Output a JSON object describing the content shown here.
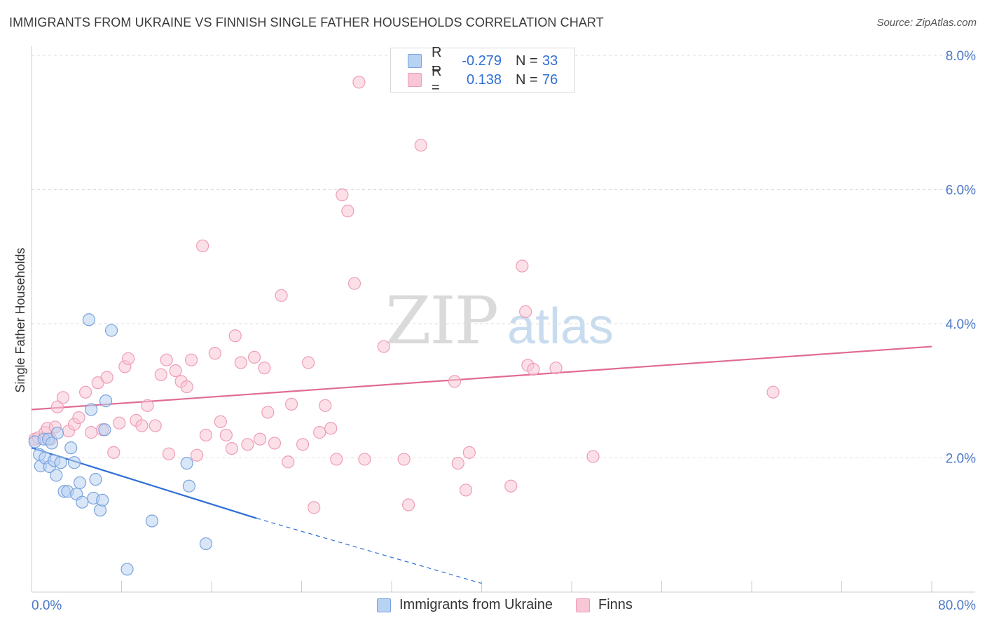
{
  "header": {
    "title": "IMMIGRANTS FROM UKRAINE VS FINNISH SINGLE FATHER HOUSEHOLDS CORRELATION CHART",
    "source": "Source: ZipAtlas.com"
  },
  "watermark": {
    "zip": "ZIP",
    "atlas": "atlas"
  },
  "legend": {
    "rows": [
      {
        "r_label": "R =",
        "r_value": "-0.279",
        "n_label": "N =",
        "n_value": "33",
        "fill": "#b8d2f3",
        "stroke": "#7aa3dd"
      },
      {
        "r_label": "R =",
        "r_value": "0.138",
        "n_label": "N =",
        "n_value": "76",
        "fill": "#f9c6d6",
        "stroke": "#ee9db7"
      }
    ]
  },
  "bottom_legend": {
    "items": [
      {
        "label": "Immigrants from Ukraine",
        "fill": "#b8d2f3",
        "stroke": "#7aa3dd"
      },
      {
        "label": "Finns",
        "fill": "#f9c6d6",
        "stroke": "#ee9db7"
      }
    ]
  },
  "chart_data": {
    "type": "scatter",
    "title": "IMMIGRANTS FROM UKRAINE VS FINNISH SINGLE FATHER HOUSEHOLDS CORRELATION CHART",
    "xlabel": "",
    "ylabel": "Single Father Households",
    "xlim": [
      0,
      80
    ],
    "ylim": [
      0,
      8.2
    ],
    "x_tick_labels": [
      "0.0%",
      "80.0%"
    ],
    "y_ticks": [
      2,
      4,
      6,
      8
    ],
    "y_tick_labels": [
      "2.0%",
      "4.0%",
      "6.0%",
      "8.0%"
    ],
    "grid": true,
    "legend_position": "top-center",
    "colors": {
      "ukraine": "#2f6fd6",
      "finns": "#e06b94"
    },
    "series": [
      {
        "name": "Immigrants from Ukraine",
        "color": "#7aa3dd",
        "fill": "#b8d2f3",
        "points": [
          [
            0.3,
            2.24
          ],
          [
            0.7,
            2.05
          ],
          [
            0.8,
            1.88
          ],
          [
            1.1,
            2.28
          ],
          [
            1.2,
            2.0
          ],
          [
            1.5,
            2.28
          ],
          [
            1.6,
            1.87
          ],
          [
            1.8,
            2.22
          ],
          [
            2.0,
            1.96
          ],
          [
            2.2,
            1.74
          ],
          [
            2.3,
            2.37
          ],
          [
            2.6,
            1.93
          ],
          [
            2.9,
            1.5
          ],
          [
            3.2,
            1.5
          ],
          [
            3.5,
            2.15
          ],
          [
            3.8,
            1.93
          ],
          [
            4.0,
            1.46
          ],
          [
            4.3,
            1.63
          ],
          [
            4.5,
            1.34
          ],
          [
            5.1,
            4.06
          ],
          [
            5.3,
            2.72
          ],
          [
            5.5,
            1.4
          ],
          [
            5.7,
            1.68
          ],
          [
            6.1,
            1.22
          ],
          [
            6.3,
            1.37
          ],
          [
            6.5,
            2.42
          ],
          [
            6.6,
            2.85
          ],
          [
            7.1,
            3.9
          ],
          [
            8.5,
            0.34
          ],
          [
            10.7,
            1.06
          ],
          [
            13.8,
            1.92
          ],
          [
            14.0,
            1.58
          ],
          [
            15.5,
            0.72
          ]
        ],
        "trend": {
          "x": [
            0,
            20
          ],
          "y": [
            2.15,
            1.1
          ],
          "dashed_to": [
            40,
            0.13
          ]
        }
      },
      {
        "name": "Finns",
        "color": "#ee9db7",
        "fill": "#f9c6d6",
        "points": [
          [
            0.3,
            2.28
          ],
          [
            0.6,
            2.3
          ],
          [
            1.2,
            2.38
          ],
          [
            1.4,
            2.44
          ],
          [
            1.7,
            2.28
          ],
          [
            2.1,
            2.46
          ],
          [
            2.3,
            2.76
          ],
          [
            2.8,
            2.9
          ],
          [
            3.3,
            2.4
          ],
          [
            3.8,
            2.5
          ],
          [
            4.2,
            2.6
          ],
          [
            4.8,
            2.98
          ],
          [
            5.3,
            2.38
          ],
          [
            5.9,
            3.12
          ],
          [
            6.3,
            2.42
          ],
          [
            6.7,
            3.2
          ],
          [
            7.3,
            2.08
          ],
          [
            7.8,
            2.52
          ],
          [
            8.3,
            3.36
          ],
          [
            8.6,
            3.48
          ],
          [
            9.3,
            2.56
          ],
          [
            9.8,
            2.48
          ],
          [
            10.3,
            2.78
          ],
          [
            11.0,
            2.48
          ],
          [
            11.5,
            3.24
          ],
          [
            12.0,
            3.46
          ],
          [
            12.2,
            2.06
          ],
          [
            12.8,
            3.3
          ],
          [
            13.3,
            3.14
          ],
          [
            13.8,
            3.06
          ],
          [
            14.2,
            3.46
          ],
          [
            14.7,
            2.04
          ],
          [
            15.2,
            5.16
          ],
          [
            15.5,
            2.34
          ],
          [
            16.3,
            3.56
          ],
          [
            16.8,
            2.54
          ],
          [
            17.3,
            2.34
          ],
          [
            17.8,
            2.14
          ],
          [
            18.1,
            3.82
          ],
          [
            18.6,
            3.42
          ],
          [
            19.2,
            2.2
          ],
          [
            19.8,
            3.5
          ],
          [
            20.3,
            2.28
          ],
          [
            20.7,
            3.34
          ],
          [
            21.0,
            2.68
          ],
          [
            21.6,
            2.22
          ],
          [
            22.2,
            4.42
          ],
          [
            22.8,
            1.94
          ],
          [
            23.1,
            2.8
          ],
          [
            24.1,
            2.2
          ],
          [
            24.6,
            3.42
          ],
          [
            25.1,
            1.26
          ],
          [
            25.6,
            2.38
          ],
          [
            26.1,
            2.78
          ],
          [
            26.6,
            2.44
          ],
          [
            27.1,
            1.98
          ],
          [
            27.6,
            5.92
          ],
          [
            28.1,
            5.68
          ],
          [
            28.7,
            4.6
          ],
          [
            29.1,
            7.6
          ],
          [
            29.6,
            1.98
          ],
          [
            31.3,
            3.66
          ],
          [
            33.1,
            1.98
          ],
          [
            33.5,
            1.3
          ],
          [
            34.6,
            6.66
          ],
          [
            37.6,
            3.14
          ],
          [
            37.9,
            1.92
          ],
          [
            38.6,
            1.52
          ],
          [
            38.9,
            2.08
          ],
          [
            42.6,
            1.58
          ],
          [
            43.6,
            4.86
          ],
          [
            43.9,
            4.18
          ],
          [
            44.1,
            3.38
          ],
          [
            44.6,
            3.32
          ],
          [
            46.6,
            3.34
          ],
          [
            49.9,
            2.02
          ],
          [
            65.9,
            2.98
          ]
        ],
        "trend": {
          "x": [
            0,
            80
          ],
          "y": [
            2.72,
            3.66
          ]
        }
      }
    ]
  }
}
